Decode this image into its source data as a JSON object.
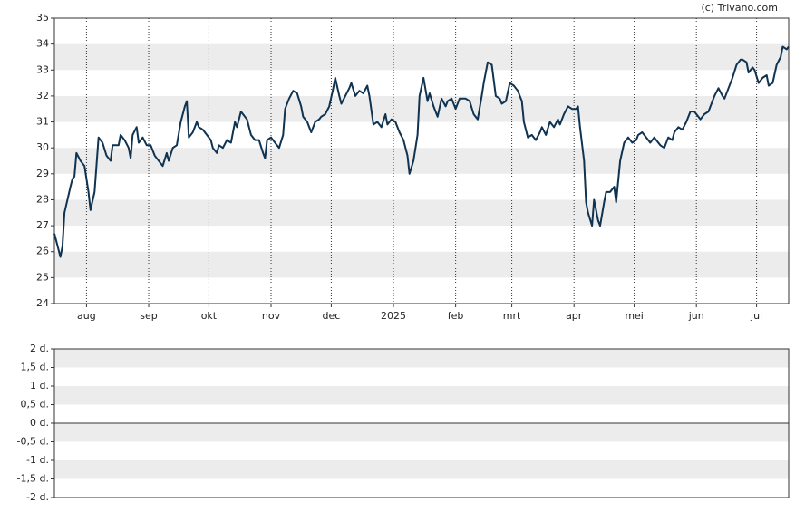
{
  "chart_data": [
    {
      "type": "line",
      "source": "(c) Trivano.com",
      "xlim": [
        0,
        366
      ],
      "xticks": [
        {
          "value": 16,
          "label": "aug"
        },
        {
          "value": 47,
          "label": "sep"
        },
        {
          "value": 77,
          "label": "okt"
        },
        {
          "value": 108,
          "label": "nov"
        },
        {
          "value": 138,
          "label": "dec"
        },
        {
          "value": 169,
          "label": "2025"
        },
        {
          "value": 200,
          "label": "feb"
        },
        {
          "value": 228,
          "label": "mrt"
        },
        {
          "value": 259,
          "label": "apr"
        },
        {
          "value": 289,
          "label": "mei"
        },
        {
          "value": 320,
          "label": "jun"
        },
        {
          "value": 350,
          "label": "jul"
        }
      ],
      "ylim": [
        24,
        35
      ],
      "yticks": [
        24,
        25,
        26,
        27,
        28,
        29,
        30,
        31,
        32,
        33,
        34,
        35
      ],
      "grid": true,
      "x": [
        0,
        3,
        4,
        5,
        8,
        9,
        10,
        11,
        13,
        15,
        17,
        18,
        20,
        22,
        24,
        26,
        28,
        29,
        32,
        33,
        35,
        37,
        38,
        39,
        41,
        42,
        44,
        46,
        48,
        50,
        52,
        54,
        56,
        57,
        59,
        61,
        63,
        65,
        66,
        67,
        69,
        71,
        72,
        74,
        76,
        78,
        79,
        81,
        82,
        84,
        86,
        88,
        90,
        91,
        93,
        95,
        96,
        98,
        100,
        102,
        104,
        105,
        106,
        108,
        110,
        112,
        114,
        115,
        117,
        119,
        121,
        123,
        124,
        126,
        128,
        130,
        132,
        133,
        135,
        137,
        139,
        140,
        142,
        143,
        145,
        147,
        148,
        150,
        152,
        154,
        156,
        157,
        159,
        161,
        163,
        165,
        166,
        168,
        170,
        172,
        174,
        176,
        177,
        179,
        181,
        182,
        184,
        186,
        187,
        189,
        191,
        193,
        195,
        196,
        198,
        200,
        202,
        204,
        205,
        207,
        209,
        211,
        213,
        214,
        216,
        218,
        220,
        222,
        223,
        225,
        227,
        229,
        231,
        233,
        234,
        236,
        238,
        240,
        242,
        243,
        245,
        247,
        249,
        251,
        252,
        254,
        256,
        258,
        260,
        261,
        262,
        264,
        265,
        266,
        268,
        269,
        271,
        272,
        274,
        275,
        277,
        279,
        280,
        282,
        284,
        286,
        288,
        290,
        291,
        293,
        295,
        297,
        299,
        300,
        302,
        304,
        306,
        308,
        309,
        311,
        313,
        315,
        317,
        319,
        320,
        322,
        324,
        326,
        328,
        329,
        331,
        333,
        334,
        336,
        338,
        340,
        342,
        343,
        345,
        346,
        348,
        349,
        351,
        353,
        355,
        356,
        358,
        360,
        362,
        363,
        365,
        366
      ],
      "series": [
        {
          "color": "#0f3350",
          "values": [
            26.7,
            25.8,
            26.2,
            27.5,
            28.5,
            28.8,
            28.9,
            29.8,
            29.5,
            29.3,
            28.3,
            27.6,
            28.3,
            30.4,
            30.2,
            29.7,
            29.5,
            30.1,
            30.1,
            30.5,
            30.3,
            30.0,
            29.6,
            30.5,
            30.8,
            30.2,
            30.4,
            30.1,
            30.1,
            29.7,
            29.5,
            29.3,
            29.8,
            29.5,
            30.0,
            30.1,
            31.0,
            31.6,
            31.8,
            30.4,
            30.6,
            31.0,
            30.8,
            30.7,
            30.5,
            30.3,
            30.0,
            29.8,
            30.1,
            30.0,
            30.3,
            30.2,
            31.0,
            30.8,
            31.4,
            31.2,
            31.1,
            30.5,
            30.3,
            30.3,
            29.8,
            29.6,
            30.3,
            30.4,
            30.2,
            30.0,
            30.5,
            31.5,
            31.9,
            32.2,
            32.1,
            31.6,
            31.2,
            31.0,
            30.6,
            31.0,
            31.1,
            31.2,
            31.3,
            31.6,
            32.3,
            32.7,
            32.0,
            31.7,
            32.0,
            32.3,
            32.5,
            32.0,
            32.2,
            32.1,
            32.4,
            32.0,
            30.9,
            31.0,
            30.8,
            31.3,
            30.9,
            31.1,
            31.0,
            30.6,
            30.3,
            29.7,
            29.0,
            29.5,
            30.5,
            32.0,
            32.7,
            31.8,
            32.1,
            31.6,
            31.2,
            31.9,
            31.6,
            31.8,
            31.9,
            31.5,
            31.9,
            31.9,
            31.9,
            31.8,
            31.3,
            31.1,
            32.0,
            32.5,
            33.3,
            33.2,
            32.0,
            31.9,
            31.7,
            31.8,
            32.5,
            32.4,
            32.2,
            31.8,
            31.0,
            30.4,
            30.5,
            30.3,
            30.6,
            30.8,
            30.5,
            31.0,
            30.8,
            31.1,
            30.9,
            31.3,
            31.6,
            31.5,
            31.5,
            31.6,
            30.8,
            29.5,
            27.9,
            27.5,
            27.0,
            28.0,
            27.2,
            27.0,
            27.9,
            28.3,
            28.3,
            28.5,
            27.9,
            29.5,
            30.2,
            30.4,
            30.2,
            30.3,
            30.5,
            30.6,
            30.4,
            30.2,
            30.4,
            30.3,
            30.1,
            30.0,
            30.4,
            30.3,
            30.6,
            30.8,
            30.7,
            31.0,
            31.4,
            31.4,
            31.3,
            31.1,
            31.3,
            31.4,
            31.8,
            32.0,
            32.3,
            32.0,
            31.9,
            32.3,
            32.7,
            33.2,
            33.4,
            33.4,
            33.3,
            32.9,
            33.1,
            33.0,
            32.5,
            32.7,
            32.8,
            32.4,
            32.5,
            33.2,
            33.5,
            33.9,
            33.8,
            33.9
          ]
        }
      ]
    },
    {
      "type": "bar",
      "values": [],
      "ylim": [
        -2,
        2
      ],
      "yticks": [
        {
          "value": 2,
          "label": "2 d."
        },
        {
          "value": 1.5,
          "label": "1,5 d."
        },
        {
          "value": 1,
          "label": "1 d."
        },
        {
          "value": 0.5,
          "label": "0,5 d."
        },
        {
          "value": 0,
          "label": "0 d."
        },
        {
          "value": -0.5,
          "label": "-0,5 d."
        },
        {
          "value": -1,
          "label": "-1 d."
        },
        {
          "value": -1.5,
          "label": "-1,5 d."
        },
        {
          "value": -2,
          "label": "-2 d."
        }
      ],
      "grid": true
    }
  ]
}
